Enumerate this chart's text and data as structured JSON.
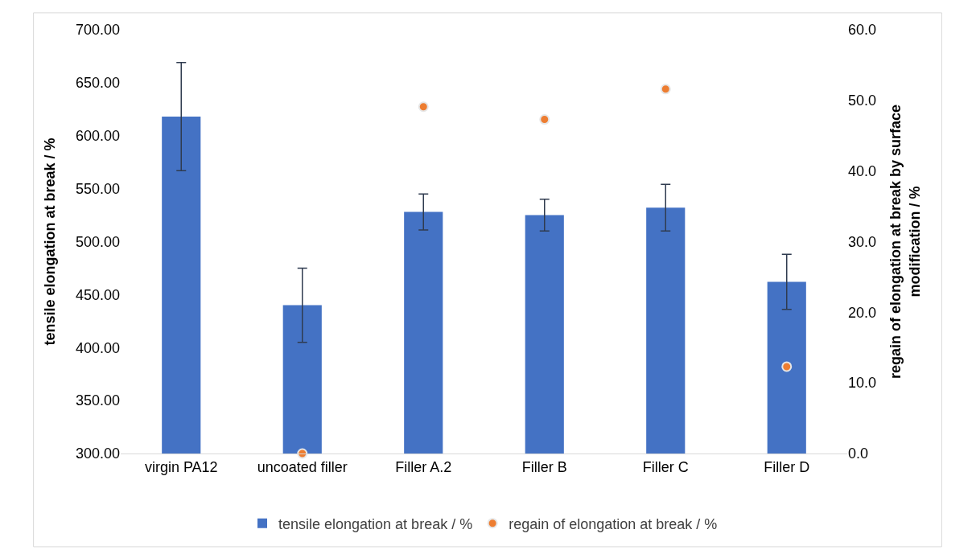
{
  "chart_data": {
    "type": "bar",
    "categories": [
      "virgin PA12",
      "uncoated filler",
      "Filler A.2",
      "Filler B",
      "Filler C",
      "Filler D"
    ],
    "ylabel": "tensile elongation at break / %",
    "y2label": "regain of elongation at break by surface modification / %",
    "series": [
      {
        "name": "tensile elongation at break / %",
        "color": "#4472c4",
        "values": [
          618,
          440,
          528,
          525,
          532,
          462
        ],
        "errors": [
          51,
          35,
          17,
          15,
          22,
          26
        ]
      },
      {
        "name": "regain of elongation at break / %",
        "type": "scatter",
        "axis": "y2",
        "color": "#ed7d31",
        "values": [
          null,
          0,
          49.1,
          47.3,
          51.6,
          12.3
        ]
      }
    ],
    "ylim": [
      300,
      700
    ],
    "yticks": [
      {
        "value": 300,
        "label": "300.00"
      },
      {
        "value": 350,
        "label": "350.00"
      },
      {
        "value": 400,
        "label": "400.00"
      },
      {
        "value": 450,
        "label": "450.00"
      },
      {
        "value": 500,
        "label": "500.00"
      },
      {
        "value": 550,
        "label": "550.00"
      },
      {
        "value": 600,
        "label": "600.00"
      },
      {
        "value": 650,
        "label": "650.00"
      },
      {
        "value": 700,
        "label": "700.00"
      }
    ],
    "y2lim": [
      0,
      60
    ],
    "y2ticks": [
      {
        "value": 0,
        "label": "0.0"
      },
      {
        "value": 10,
        "label": "10.0"
      },
      {
        "value": 20,
        "label": "20.0"
      },
      {
        "value": 30,
        "label": "30.0"
      },
      {
        "value": 40,
        "label": "40.0"
      },
      {
        "value": 50,
        "label": "50.0"
      },
      {
        "value": 60,
        "label": "60.0"
      }
    ],
    "marker": "circle",
    "grid": false,
    "legend": "bottom"
  }
}
